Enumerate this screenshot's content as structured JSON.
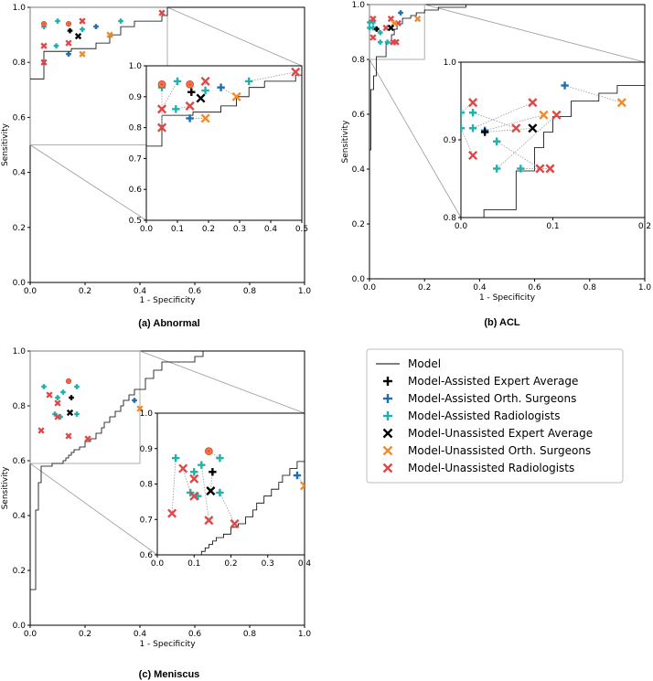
{
  "colors": {
    "model": "#000000",
    "assisted_avg": "#000000",
    "assisted_orth": "#1f6fb0",
    "assisted_rad": "#20b2aa",
    "unassisted_avg": "#000000",
    "unassisted_orth": "#f08c30",
    "unassisted_rad": "#e04848",
    "frame": "#000000",
    "zoom": "#9a9a9a"
  },
  "legend": {
    "placement": "right-middle",
    "items": [
      {
        "key": "model",
        "label": "Model",
        "marker": "line"
      },
      {
        "key": "assisted_avg",
        "label": "Model-Assisted Expert Average",
        "marker": "plus"
      },
      {
        "key": "assisted_orth",
        "label": "Model-Assisted Orth. Surgeons",
        "marker": "plus"
      },
      {
        "key": "assisted_rad",
        "label": "Model-Assisted Radiologists",
        "marker": "plus"
      },
      {
        "key": "unassisted_avg",
        "label": "Model-Unassisted Expert Average",
        "marker": "x"
      },
      {
        "key": "unassisted_orth",
        "label": "Model-Unassisted Orth. Surgeons",
        "marker": "x"
      },
      {
        "key": "unassisted_rad",
        "label": "Model-Unassisted Radiologists",
        "marker": "x"
      }
    ]
  },
  "chart_data": [
    {
      "id": "abnormal",
      "type": "line",
      "caption": "(a) Abnormal",
      "xlabel": "1 - Specificity",
      "ylabel": "Sensitivity",
      "xlim": [
        0,
        1
      ],
      "ylim": [
        0,
        1
      ],
      "xticks": [
        "0.0",
        "0.2",
        "0.4",
        "0.6",
        "0.8",
        "1.0"
      ],
      "yticks": [
        "0.0",
        "0.2",
        "0.4",
        "0.6",
        "0.8",
        "1.0"
      ],
      "roc": [
        [
          0,
          0.74
        ],
        [
          0.05,
          0.74
        ],
        [
          0.05,
          0.8
        ],
        [
          0.05,
          0.84
        ],
        [
          0.15,
          0.84
        ],
        [
          0.15,
          0.85
        ],
        [
          0.24,
          0.85
        ],
        [
          0.24,
          0.87
        ],
        [
          0.29,
          0.87
        ],
        [
          0.29,
          0.9
        ],
        [
          0.33,
          0.9
        ],
        [
          0.33,
          0.93
        ],
        [
          0.38,
          0.93
        ],
        [
          0.38,
          0.95
        ],
        [
          0.48,
          0.95
        ],
        [
          0.48,
          0.97
        ],
        [
          0.5,
          0.97
        ],
        [
          0.5,
          1.0
        ],
        [
          1.0,
          1.0
        ]
      ],
      "inset": {
        "xlim": [
          0,
          0.5
        ],
        "ylim": [
          0.5,
          1.0
        ],
        "xticks": [
          "0.0",
          "0.1",
          "0.2",
          "0.3",
          "0.4",
          "0.5"
        ],
        "yticks": [
          "0.5",
          "0.6",
          "0.7",
          "0.8",
          "0.9",
          "1.0"
        ]
      },
      "points": [
        {
          "g": "assisted_rad",
          "x": 0.05,
          "y": 0.93
        },
        {
          "g": "assisted_rad",
          "x": 0.1,
          "y": 0.95
        },
        {
          "g": "assisted_rad",
          "x": 0.095,
          "y": 0.86
        },
        {
          "g": "assisted_rad",
          "x": 0.19,
          "y": 0.92
        },
        {
          "g": "assisted_rad",
          "x": 0.33,
          "y": 0.95
        },
        {
          "g": "assisted_orth",
          "x": 0.14,
          "y": 0.83
        },
        {
          "g": "assisted_orth",
          "x": 0.24,
          "y": 0.93
        },
        {
          "g": "assisted_avg",
          "x": 0.145,
          "y": 0.915
        },
        {
          "g": "unassisted_rad",
          "x": 0.05,
          "y": 0.8
        },
        {
          "g": "unassisted_rad",
          "x": 0.05,
          "y": 0.86
        },
        {
          "g": "unassisted_rad",
          "x": 0.14,
          "y": 0.87
        },
        {
          "g": "unassisted_rad",
          "x": 0.19,
          "y": 0.95
        },
        {
          "g": "unassisted_rad",
          "x": 0.48,
          "y": 0.98
        },
        {
          "g": "unassisted_orth",
          "x": 0.19,
          "y": 0.83
        },
        {
          "g": "unassisted_orth",
          "x": 0.29,
          "y": 0.9
        },
        {
          "g": "unassisted_avg",
          "x": 0.175,
          "y": 0.895
        },
        {
          "g": "overlap",
          "x": 0.05,
          "y": 0.94
        },
        {
          "g": "overlap",
          "x": 0.14,
          "y": 0.94
        }
      ],
      "pairs": [
        [
          0.05,
          0.93,
          0.05,
          0.8
        ],
        [
          0.1,
          0.95,
          0.05,
          0.86
        ],
        [
          0.095,
          0.86,
          0.14,
          0.87
        ],
        [
          0.19,
          0.92,
          0.19,
          0.95
        ],
        [
          0.33,
          0.95,
          0.48,
          0.98
        ],
        [
          0.14,
          0.83,
          0.19,
          0.83
        ],
        [
          0.24,
          0.93,
          0.29,
          0.9
        ]
      ]
    },
    {
      "id": "acl",
      "type": "line",
      "caption": "(b) ACL",
      "xlabel": "1 - Specificity",
      "ylabel": "Sensitivity",
      "xlim": [
        0,
        1
      ],
      "ylim": [
        0,
        1
      ],
      "xticks": [
        "0.0",
        "0.2",
        "0.4",
        "0.6",
        "0.8",
        "1.0"
      ],
      "yticks": [
        "0.0",
        "0.2",
        "0.4",
        "0.6",
        "0.8",
        "1.0"
      ],
      "roc": [
        [
          0,
          0.47
        ],
        [
          0.005,
          0.47
        ],
        [
          0.005,
          0.69
        ],
        [
          0.015,
          0.69
        ],
        [
          0.015,
          0.74
        ],
        [
          0.025,
          0.74
        ],
        [
          0.025,
          0.81
        ],
        [
          0.04,
          0.81
        ],
        [
          0.04,
          0.81
        ],
        [
          0.06,
          0.81
        ],
        [
          0.06,
          0.86
        ],
        [
          0.08,
          0.86
        ],
        [
          0.08,
          0.89
        ],
        [
          0.09,
          0.89
        ],
        [
          0.09,
          0.91
        ],
        [
          0.1,
          0.91
        ],
        [
          0.1,
          0.93
        ],
        [
          0.12,
          0.93
        ],
        [
          0.12,
          0.95
        ],
        [
          0.15,
          0.95
        ],
        [
          0.15,
          0.96
        ],
        [
          0.17,
          0.96
        ],
        [
          0.17,
          0.97
        ],
        [
          0.2,
          0.97
        ],
        [
          0.2,
          0.98
        ],
        [
          0.25,
          0.98
        ],
        [
          0.25,
          0.99
        ],
        [
          0.35,
          0.99
        ],
        [
          0.35,
          1.0
        ],
        [
          1.0,
          1.0
        ]
      ],
      "inset": {
        "xlim": [
          0,
          0.2
        ],
        "ylim": [
          0.8,
          1.0
        ],
        "xticks": [
          "0.0",
          "0.1",
          "0.2"
        ],
        "yticks": [
          "0.8",
          "0.9",
          "1.0"
        ]
      },
      "points": [
        {
          "g": "assisted_rad",
          "x": 0.0,
          "y": 0.935
        },
        {
          "g": "assisted_rad",
          "x": 0.0,
          "y": 0.915
        },
        {
          "g": "assisted_rad",
          "x": 0.013,
          "y": 0.935
        },
        {
          "g": "assisted_rad",
          "x": 0.013,
          "y": 0.915
        },
        {
          "g": "assisted_rad",
          "x": 0.039,
          "y": 0.898
        },
        {
          "g": "assisted_rad",
          "x": 0.039,
          "y": 0.863
        },
        {
          "g": "assisted_rad",
          "x": 0.065,
          "y": 0.863
        },
        {
          "g": "assisted_orth",
          "x": 0.026,
          "y": 0.912
        },
        {
          "g": "assisted_orth",
          "x": 0.113,
          "y": 0.97
        },
        {
          "g": "assisted_avg",
          "x": 0.026,
          "y": 0.91
        },
        {
          "g": "unassisted_rad",
          "x": 0.013,
          "y": 0.948
        },
        {
          "g": "unassisted_rad",
          "x": 0.013,
          "y": 0.88
        },
        {
          "g": "unassisted_rad",
          "x": 0.06,
          "y": 0.915
        },
        {
          "g": "unassisted_rad",
          "x": 0.078,
          "y": 0.948
        },
        {
          "g": "unassisted_rad",
          "x": 0.086,
          "y": 0.863
        },
        {
          "g": "unassisted_rad",
          "x": 0.104,
          "y": 0.932
        },
        {
          "g": "unassisted_rad",
          "x": 0.097,
          "y": 0.863
        },
        {
          "g": "unassisted_orth",
          "x": 0.09,
          "y": 0.932
        },
        {
          "g": "unassisted_orth",
          "x": 0.175,
          "y": 0.948
        },
        {
          "g": "unassisted_avg",
          "x": 0.078,
          "y": 0.915
        }
      ],
      "pairs": [
        [
          0.0,
          0.935,
          0.013,
          0.948
        ],
        [
          0.0,
          0.915,
          0.013,
          0.88
        ],
        [
          0.013,
          0.935,
          0.06,
          0.915
        ],
        [
          0.013,
          0.915,
          0.078,
          0.948
        ],
        [
          0.039,
          0.898,
          0.086,
          0.863
        ],
        [
          0.039,
          0.863,
          0.104,
          0.932
        ],
        [
          0.065,
          0.863,
          0.097,
          0.863
        ],
        [
          0.026,
          0.912,
          0.09,
          0.932
        ],
        [
          0.113,
          0.97,
          0.175,
          0.948
        ],
        [
          0.026,
          0.91,
          0.078,
          0.915
        ]
      ]
    },
    {
      "id": "meniscus",
      "type": "line",
      "caption": "(c) Meniscus",
      "xlabel": "1 - Specificity",
      "ylabel": "Sensitivity",
      "xlim": [
        0,
        1
      ],
      "ylim": [
        0,
        1
      ],
      "xticks": [
        "0.0",
        "0.2",
        "0.4",
        "0.6",
        "0.8",
        "1.0"
      ],
      "yticks": [
        "0.0",
        "0.2",
        "0.4",
        "0.6",
        "0.8",
        "1.0"
      ],
      "roc": [
        [
          0,
          0.13
        ],
        [
          0.02,
          0.13
        ],
        [
          0.02,
          0.42
        ],
        [
          0.03,
          0.42
        ],
        [
          0.03,
          0.52
        ],
        [
          0.04,
          0.52
        ],
        [
          0.04,
          0.58
        ],
        [
          0.08,
          0.58
        ],
        [
          0.08,
          0.59
        ],
        [
          0.12,
          0.59
        ],
        [
          0.12,
          0.6
        ],
        [
          0.13,
          0.6
        ],
        [
          0.13,
          0.61
        ],
        [
          0.14,
          0.61
        ],
        [
          0.14,
          0.62
        ],
        [
          0.15,
          0.62
        ],
        [
          0.15,
          0.63
        ],
        [
          0.16,
          0.63
        ],
        [
          0.16,
          0.64
        ],
        [
          0.18,
          0.64
        ],
        [
          0.18,
          0.65
        ],
        [
          0.2,
          0.65
        ],
        [
          0.2,
          0.67
        ],
        [
          0.22,
          0.67
        ],
        [
          0.22,
          0.68
        ],
        [
          0.24,
          0.68
        ],
        [
          0.24,
          0.7
        ],
        [
          0.26,
          0.7
        ],
        [
          0.26,
          0.72
        ],
        [
          0.27,
          0.72
        ],
        [
          0.27,
          0.74
        ],
        [
          0.29,
          0.74
        ],
        [
          0.29,
          0.76
        ],
        [
          0.31,
          0.76
        ],
        [
          0.31,
          0.78
        ],
        [
          0.33,
          0.78
        ],
        [
          0.33,
          0.8
        ],
        [
          0.34,
          0.8
        ],
        [
          0.34,
          0.82
        ],
        [
          0.36,
          0.82
        ],
        [
          0.36,
          0.84
        ],
        [
          0.38,
          0.84
        ],
        [
          0.38,
          0.86
        ],
        [
          0.42,
          0.86
        ],
        [
          0.42,
          0.9
        ],
        [
          0.45,
          0.9
        ],
        [
          0.45,
          0.93
        ],
        [
          0.48,
          0.93
        ],
        [
          0.48,
          0.96
        ],
        [
          0.6,
          0.96
        ],
        [
          0.6,
          0.98
        ],
        [
          0.63,
          0.98
        ],
        [
          0.63,
          1.0
        ],
        [
          1.0,
          1.0
        ]
      ],
      "inset": {
        "xlim": [
          0,
          0.4
        ],
        "ylim": [
          0.59,
          1.0
        ],
        "xticks": [
          "0.0",
          "0.1",
          "0.2",
          "0.3",
          "0.4"
        ],
        "yticks": [
          "0.6",
          "0.7",
          "0.8",
          "0.9",
          "1.0"
        ]
      },
      "points": [
        {
          "g": "assisted_rad",
          "x": 0.05,
          "y": 0.87
        },
        {
          "g": "assisted_rad",
          "x": 0.09,
          "y": 0.77
        },
        {
          "g": "assisted_rad",
          "x": 0.1,
          "y": 0.83
        },
        {
          "g": "assisted_rad",
          "x": 0.11,
          "y": 0.76
        },
        {
          "g": "assisted_rad",
          "x": 0.12,
          "y": 0.85
        },
        {
          "g": "assisted_rad",
          "x": 0.17,
          "y": 0.77
        },
        {
          "g": "assisted_rad",
          "x": 0.17,
          "y": 0.87
        },
        {
          "g": "assisted_orth",
          "x": 0.38,
          "y": 0.82
        },
        {
          "g": "assisted_avg",
          "x": 0.15,
          "y": 0.83
        },
        {
          "g": "unassisted_rad",
          "x": 0.04,
          "y": 0.71
        },
        {
          "g": "unassisted_rad",
          "x": 0.07,
          "y": 0.84
        },
        {
          "g": "unassisted_rad",
          "x": 0.1,
          "y": 0.81
        },
        {
          "g": "unassisted_rad",
          "x": 0.1,
          "y": 0.76
        },
        {
          "g": "unassisted_rad",
          "x": 0.14,
          "y": 0.69
        },
        {
          "g": "unassisted_rad",
          "x": 0.21,
          "y": 0.68
        },
        {
          "g": "unassisted_orth",
          "x": 0.4,
          "y": 0.79
        },
        {
          "g": "unassisted_avg",
          "x": 0.145,
          "y": 0.775
        },
        {
          "g": "overlap",
          "x": 0.14,
          "y": 0.89
        }
      ],
      "pairs": [
        [
          0.05,
          0.87,
          0.04,
          0.71
        ],
        [
          0.09,
          0.77,
          0.07,
          0.84
        ],
        [
          0.1,
          0.83,
          0.1,
          0.81
        ],
        [
          0.11,
          0.76,
          0.1,
          0.76
        ],
        [
          0.12,
          0.85,
          0.14,
          0.69
        ],
        [
          0.17,
          0.77,
          0.21,
          0.68
        ],
        [
          0.17,
          0.87,
          0.14,
          0.89
        ],
        [
          0.38,
          0.82,
          0.4,
          0.79
        ],
        [
          0.15,
          0.83,
          0.145,
          0.775
        ]
      ]
    }
  ]
}
